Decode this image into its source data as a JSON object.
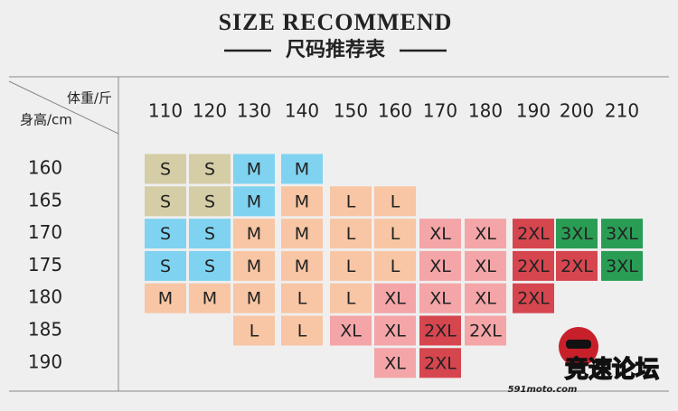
{
  "header": {
    "title": "SIZE RECOMMEND",
    "subtitle": "尺码推荐表"
  },
  "table": {
    "corner_top": "体重/斤",
    "corner_bottom": "身高/cm",
    "columns": [
      110,
      120,
      130,
      140,
      150,
      160,
      170,
      180,
      190,
      200,
      210
    ],
    "rows": [
      {
        "height": 160,
        "cells": [
          {
            "label": "S",
            "color": "#d4cda6"
          },
          {
            "label": "S",
            "color": "#d4cda6"
          },
          {
            "label": "M",
            "color": "#7fd3f1"
          },
          {
            "label": "M",
            "color": "#7fd3f1"
          },
          null,
          null,
          null,
          null,
          null,
          null,
          null
        ]
      },
      {
        "height": 165,
        "cells": [
          {
            "label": "S",
            "color": "#d4cda6"
          },
          {
            "label": "S",
            "color": "#d4cda6"
          },
          {
            "label": "M",
            "color": "#7fd3f1"
          },
          {
            "label": "M",
            "color": "#f8c6a4"
          },
          {
            "label": "L",
            "color": "#f8c6a4"
          },
          {
            "label": "L",
            "color": "#f8c6a4"
          },
          null,
          null,
          null,
          null,
          null
        ]
      },
      {
        "height": 170,
        "cells": [
          {
            "label": "S",
            "color": "#7fd3f1"
          },
          {
            "label": "S",
            "color": "#7fd3f1"
          },
          {
            "label": "M",
            "color": "#f8c6a4"
          },
          {
            "label": "M",
            "color": "#f8c6a4"
          },
          {
            "label": "L",
            "color": "#f8c6a4"
          },
          {
            "label": "L",
            "color": "#f8c6a4"
          },
          {
            "label": "XL",
            "color": "#f4a5a7"
          },
          {
            "label": "XL",
            "color": "#f4a5a7"
          },
          {
            "label": "2XL",
            "color": "#d6464f"
          },
          {
            "label": "3XL",
            "color": "#2a9d55"
          },
          {
            "label": "3XL",
            "color": "#2a9d55"
          }
        ]
      },
      {
        "height": 175,
        "cells": [
          {
            "label": "S",
            "color": "#7fd3f1"
          },
          {
            "label": "S",
            "color": "#7fd3f1"
          },
          {
            "label": "M",
            "color": "#f8c6a4"
          },
          {
            "label": "M",
            "color": "#f8c6a4"
          },
          {
            "label": "L",
            "color": "#f8c6a4"
          },
          {
            "label": "L",
            "color": "#f8c6a4"
          },
          {
            "label": "XL",
            "color": "#f4a5a7"
          },
          {
            "label": "XL",
            "color": "#f4a5a7"
          },
          {
            "label": "2XL",
            "color": "#d6464f"
          },
          {
            "label": "2XL",
            "color": "#d6464f"
          },
          {
            "label": "3XL",
            "color": "#2a9d55"
          }
        ]
      },
      {
        "height": 180,
        "cells": [
          {
            "label": "M",
            "color": "#f8c6a4"
          },
          {
            "label": "M",
            "color": "#f8c6a4"
          },
          {
            "label": "M",
            "color": "#f8c6a4"
          },
          {
            "label": "L",
            "color": "#f8c6a4"
          },
          {
            "label": "L",
            "color": "#f8c6a4"
          },
          {
            "label": "XL",
            "color": "#f4a5a7"
          },
          {
            "label": "XL",
            "color": "#f4a5a7"
          },
          {
            "label": "XL",
            "color": "#f4a5a7"
          },
          {
            "label": "2XL",
            "color": "#d6464f"
          },
          null,
          null
        ]
      },
      {
        "height": 185,
        "cells": [
          null,
          null,
          {
            "label": "L",
            "color": "#f8c6a4"
          },
          {
            "label": "L",
            "color": "#f8c6a4"
          },
          {
            "label": "XL",
            "color": "#f4a5a7"
          },
          {
            "label": "XL",
            "color": "#f4a5a7"
          },
          {
            "label": "2XL",
            "color": "#d6464f"
          },
          {
            "label": "2XL",
            "color": "#f4a5a7"
          },
          null,
          null,
          null
        ]
      },
      {
        "height": 190,
        "cells": [
          null,
          null,
          null,
          null,
          null,
          {
            "label": "XL",
            "color": "#f4a5a7"
          },
          {
            "label": "2XL",
            "color": "#d6464f"
          },
          null,
          null,
          null,
          null
        ]
      }
    ]
  },
  "watermark": {
    "name": "竞速论坛",
    "site": "591moto.com"
  }
}
